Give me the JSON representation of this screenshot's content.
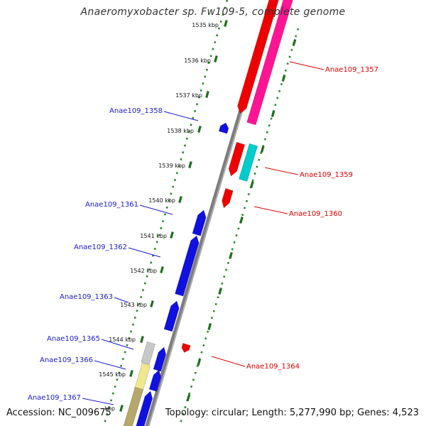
{
  "title": "Anaeromyxobacter sp. Fw109-5, complete genome",
  "accession": "Accession: NC_009675",
  "summary": "Topology: circular; Length: 5,277,990 bp; Genes: 4,523",
  "colors": {
    "backbone": "#8a8a8a",
    "tick": "#2a8a2a",
    "forward_label": "#e00000",
    "reverse_label": "#1a1ad0",
    "red": "#ee0000",
    "magenta": "#ff1493",
    "cyan": "#00cccc",
    "blue": "#1010e0"
  },
  "ticks": [
    {
      "label": "1535 kbp"
    },
    {
      "label": "1536 kbp"
    },
    {
      "label": "1537 kbp"
    },
    {
      "label": "1538 kbp"
    },
    {
      "label": "1539 kbp"
    },
    {
      "label": "1540 kbp"
    },
    {
      "label": "1541 kbp"
    },
    {
      "label": "1542 kbp"
    },
    {
      "label": "1543 kbp"
    },
    {
      "label": "1544 kbp"
    },
    {
      "label": "1545 kbp"
    },
    {
      "label": "kbp"
    }
  ],
  "forward_labels": [
    "Anae109_1357",
    "Anae109_1359",
    "Anae109_1360",
    "Anae109_1364"
  ],
  "reverse_labels": [
    "Anae109_1358",
    "Anae109_1361",
    "Anae109_1362",
    "Anae109_1363",
    "Anae109_1365",
    "Anae109_1366",
    "Anae109_1367"
  ]
}
